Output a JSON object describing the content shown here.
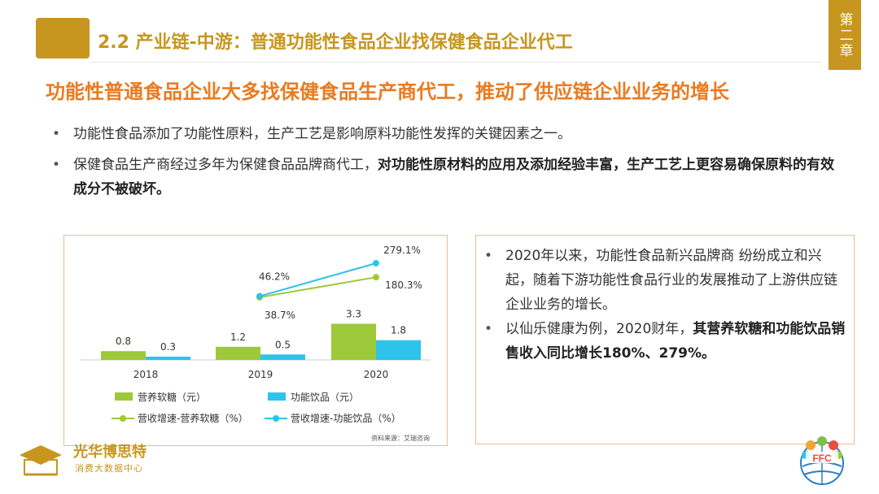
{
  "header": {
    "title": "2.2 产业链-中游：普通功能性食品企业找保健食品企业代工",
    "chapter": "第二章"
  },
  "headline": "功能性普通食品企业大多找保健食品生产商代工，推动了供应链企业业务的增长",
  "bullets": [
    {
      "text": "功能性食品添加了功能性原料，生产工艺是影响原料功能性发挥的关键因素之一。"
    },
    {
      "text_plain": "保健食品生产商经过多年为保健食品品牌商代工，",
      "text_bold": "对功能性原材料的应用及添加经验丰富，生产工艺上更容易确保原料的有效成分不被破坏。"
    }
  ],
  "chart_data": {
    "type": "bar",
    "categories": [
      "2018",
      "2019",
      "2020"
    ],
    "series": [
      {
        "name": "营养软糖（元）",
        "values": [
          0.8,
          1.2,
          3.3
        ],
        "color": "#9dc93a"
      },
      {
        "name": "功能饮品（元）",
        "values": [
          0.3,
          0.5,
          1.8
        ],
        "color": "#2ec3ea"
      }
    ],
    "growth_series": [
      {
        "name": "营收增速-营养软糖（%）",
        "categories": [
          "2019",
          "2020"
        ],
        "values": [
          38.7,
          180.3
        ],
        "color": "#9dc93a"
      },
      {
        "name": "营收增速-功能饮品（%）",
        "categories": [
          "2019",
          "2020"
        ],
        "values": [
          46.2,
          279.1
        ],
        "color": "#2ec3ea"
      }
    ],
    "value_labels": {
      "bars_a": [
        "0.8",
        "1.2",
        "3.3"
      ],
      "bars_b": [
        "0.3",
        "0.5",
        "1.8"
      ],
      "growth_a": [
        "38.7%",
        "180.3%"
      ],
      "growth_b": [
        "46.2%",
        "279.1%"
      ]
    },
    "legend": [
      "营养软糖（元）",
      "功能饮品（元）",
      "营收增速-营养软糖（%）",
      "营收增速-功能饮品（%）"
    ],
    "legend_position": "bottom"
  },
  "source": "资料来源：艾瑞咨询",
  "notes": [
    {
      "text": "2020年以来，功能性食品新兴品牌商 纷纷成立和兴起，随着下游功能性食品行业的发展推动了上游供应链企业业务的增长。"
    },
    {
      "text_plain": "以仙乐健康为例，2020财年，",
      "text_bold": "其营养软糖和功能饮品销售收入同比增长180%、279%。"
    }
  ],
  "logos": {
    "left_title": "光华博思特",
    "left_subtitle": "消费大数据中心",
    "right_text": "FFC"
  }
}
